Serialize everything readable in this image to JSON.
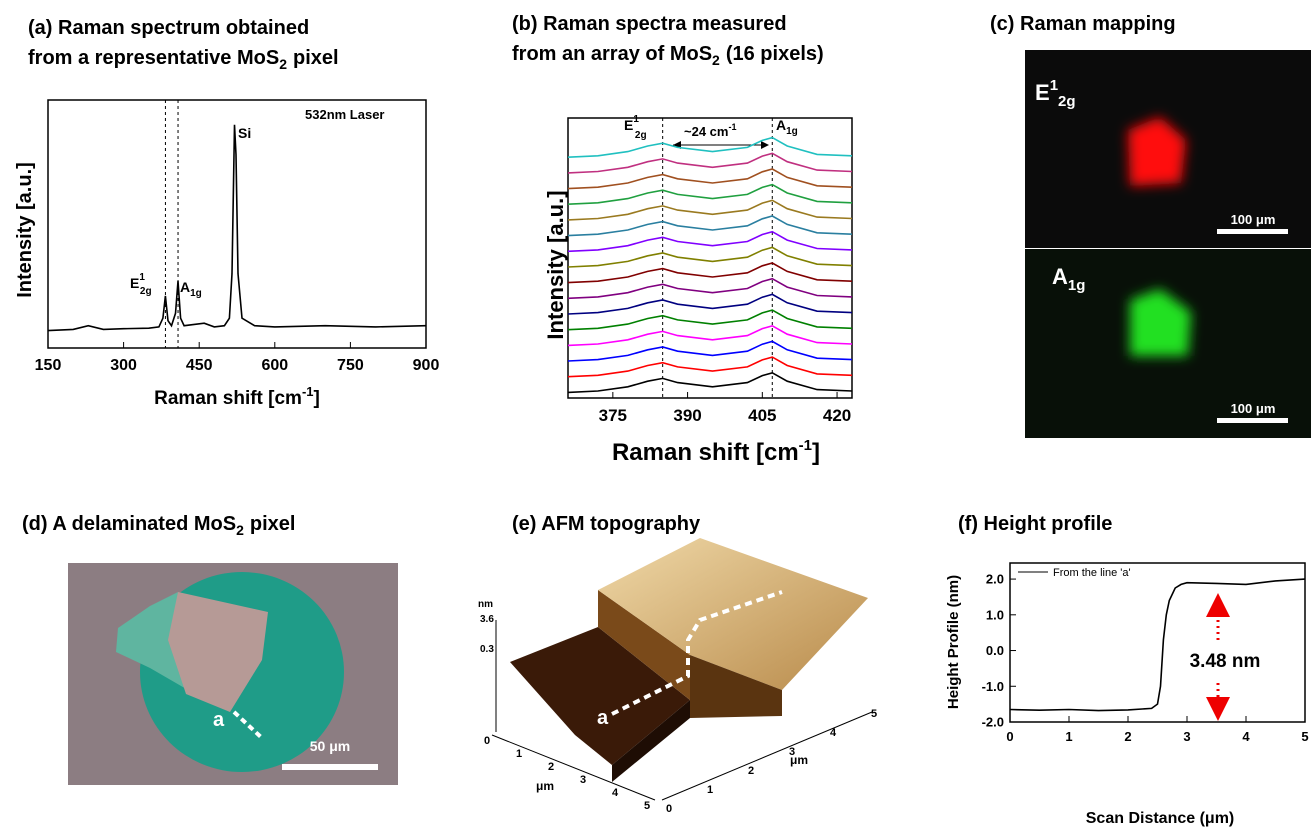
{
  "chart_data": [
    {
      "type": "line",
      "title": [
        "(a) Raman spectrum obtained",
        "from a representative MoS",
        "2",
        "pixel"
      ],
      "xlabel": [
        "Raman shift [cm",
        "-1",
        "]"
      ],
      "ylabel": "Intensity [a.u.]",
      "annotations": {
        "laser": "532nm Laser",
        "si": "Si",
        "e": [
          "E",
          "1",
          "2g"
        ],
        "a": [
          "A",
          "1g"
        ]
      },
      "x": [
        150,
        200,
        230,
        260,
        300,
        350,
        370,
        378,
        383,
        388,
        395,
        403,
        408,
        413,
        420,
        440,
        460,
        480,
        500,
        510,
        515,
        520,
        523,
        527,
        535,
        560,
        600,
        700,
        800,
        900
      ],
      "values": [
        0.07,
        0.075,
        0.09,
        0.075,
        0.078,
        0.08,
        0.085,
        0.12,
        0.21,
        0.11,
        0.09,
        0.14,
        0.27,
        0.12,
        0.09,
        0.095,
        0.1,
        0.085,
        0.09,
        0.12,
        0.3,
        0.9,
        0.78,
        0.3,
        0.12,
        0.09,
        0.085,
        0.09,
        0.085,
        0.09
      ],
      "color": "#000000",
      "vlines": [
        383,
        408
      ],
      "xlim": [
        150,
        900
      ],
      "xticks": [
        150,
        300,
        450,
        600,
        750,
        900
      ],
      "ylim": [
        0,
        1
      ]
    },
    {
      "type": "line",
      "title": [
        "(b) Raman spectra measured",
        "from an array of MoS",
        "2",
        "(16 pixels)"
      ],
      "xlabel": [
        "Raman shift [cm",
        "-1",
        "]"
      ],
      "ylabel": "Intensity [a.u.]",
      "annotations": {
        "e": [
          "E",
          "1",
          "2g"
        ],
        "shift": [
          "~24 cm",
          "-1"
        ],
        "a": [
          "A",
          "1g"
        ]
      },
      "x": [
        366,
        372,
        378,
        382,
        385,
        388,
        395,
        402,
        405,
        407,
        410,
        416,
        423
      ],
      "series": [
        {
          "color": "#000000",
          "values": [
            0.02,
            0.025,
            0.04,
            0.06,
            0.07,
            0.055,
            0.04,
            0.055,
            0.08,
            0.09,
            0.06,
            0.03,
            0.025
          ]
        },
        {
          "color": "#ff0000",
          "values": [
            0.076,
            0.081,
            0.096,
            0.116,
            0.126,
            0.111,
            0.096,
            0.111,
            0.136,
            0.146,
            0.116,
            0.086,
            0.081
          ]
        },
        {
          "color": "#0000ff",
          "values": [
            0.132,
            0.137,
            0.152,
            0.172,
            0.182,
            0.167,
            0.152,
            0.167,
            0.192,
            0.202,
            0.172,
            0.142,
            0.137
          ]
        },
        {
          "color": "#ff00ff",
          "values": [
            0.188,
            0.193,
            0.208,
            0.228,
            0.238,
            0.223,
            0.208,
            0.223,
            0.248,
            0.258,
            0.228,
            0.198,
            0.193
          ]
        },
        {
          "color": "#008000",
          "values": [
            0.244,
            0.249,
            0.264,
            0.284,
            0.294,
            0.279,
            0.264,
            0.279,
            0.304,
            0.314,
            0.284,
            0.254,
            0.249
          ]
        },
        {
          "color": "#000080",
          "values": [
            0.3,
            0.305,
            0.32,
            0.34,
            0.35,
            0.335,
            0.32,
            0.335,
            0.36,
            0.37,
            0.34,
            0.31,
            0.305
          ]
        },
        {
          "color": "#800080",
          "values": [
            0.356,
            0.361,
            0.376,
            0.396,
            0.406,
            0.391,
            0.376,
            0.391,
            0.416,
            0.426,
            0.396,
            0.366,
            0.361
          ]
        },
        {
          "color": "#800000",
          "values": [
            0.412,
            0.417,
            0.432,
            0.452,
            0.462,
            0.447,
            0.432,
            0.447,
            0.472,
            0.482,
            0.452,
            0.422,
            0.417
          ]
        },
        {
          "color": "#808000",
          "values": [
            0.468,
            0.473,
            0.488,
            0.508,
            0.518,
            0.503,
            0.488,
            0.503,
            0.528,
            0.538,
            0.508,
            0.478,
            0.473
          ]
        },
        {
          "color": "#8000ff",
          "values": [
            0.524,
            0.529,
            0.544,
            0.564,
            0.574,
            0.559,
            0.544,
            0.559,
            0.584,
            0.594,
            0.564,
            0.534,
            0.529
          ]
        },
        {
          "color": "#2a7fa0",
          "values": [
            0.58,
            0.585,
            0.6,
            0.62,
            0.63,
            0.615,
            0.6,
            0.615,
            0.64,
            0.65,
            0.62,
            0.59,
            0.585
          ]
        },
        {
          "color": "#9a7a20",
          "values": [
            0.636,
            0.641,
            0.656,
            0.676,
            0.686,
            0.671,
            0.656,
            0.671,
            0.696,
            0.706,
            0.676,
            0.646,
            0.641
          ]
        },
        {
          "color": "#20a040",
          "values": [
            0.692,
            0.697,
            0.712,
            0.732,
            0.742,
            0.727,
            0.712,
            0.727,
            0.752,
            0.762,
            0.732,
            0.702,
            0.697
          ]
        },
        {
          "color": "#a05020",
          "values": [
            0.748,
            0.753,
            0.768,
            0.788,
            0.798,
            0.783,
            0.768,
            0.783,
            0.808,
            0.818,
            0.788,
            0.758,
            0.753
          ]
        },
        {
          "color": "#c03080",
          "values": [
            0.804,
            0.809,
            0.824,
            0.844,
            0.854,
            0.839,
            0.824,
            0.839,
            0.864,
            0.874,
            0.844,
            0.814,
            0.809
          ]
        },
        {
          "color": "#20c0c0",
          "values": [
            0.86,
            0.865,
            0.88,
            0.9,
            0.91,
            0.895,
            0.88,
            0.895,
            0.92,
            0.93,
            0.9,
            0.87,
            0.865
          ]
        }
      ],
      "vlines": [
        385,
        407
      ],
      "xlim": [
        366,
        423
      ],
      "xticks": [
        375,
        390,
        405,
        420
      ],
      "ylim": [
        0,
        1
      ]
    },
    {
      "type": "image",
      "title": "(c) Raman mapping",
      "labels": {
        "e": [
          "E",
          "1",
          "2g"
        ],
        "a": [
          "A",
          "1g"
        ],
        "scale_top": "100 μm",
        "scale_bottom": "100 μm"
      }
    },
    {
      "type": "image",
      "title": [
        "(d) A delaminated MoS",
        "2",
        "pixel"
      ],
      "labels": {
        "line": "a",
        "scale": "50 μm"
      }
    },
    {
      "type": "surface",
      "title": "(e) AFM topography",
      "labels": {
        "z_unit": "nm",
        "x_unit": "μm",
        "y_unit": "μm",
        "line": "a"
      },
      "zticks": [
        3.6,
        0.3
      ],
      "xticks": [
        0,
        1,
        2,
        3,
        4,
        5
      ],
      "yticks": [
        0,
        1,
        2,
        3,
        4,
        5
      ]
    },
    {
      "type": "line",
      "title": "(f) Height profile",
      "xlabel": "Scan Distance (μm)",
      "ylabel": "Height Profile (nm)",
      "legend": "From the line 'a'",
      "annotation": "3.48 nm",
      "x": [
        0,
        0.5,
        1,
        1.5,
        2,
        2.4,
        2.5,
        2.55,
        2.6,
        2.65,
        2.7,
        2.8,
        2.9,
        3,
        3.5,
        4,
        4.5,
        5
      ],
      "values": [
        -1.65,
        -1.67,
        -1.65,
        -1.68,
        -1.66,
        -1.62,
        -1.5,
        -1.0,
        0.3,
        1.0,
        1.4,
        1.75,
        1.85,
        1.9,
        1.88,
        1.85,
        1.95,
        2.0
      ],
      "color": "#000000",
      "xlim": [
        0,
        5
      ],
      "xticks": [
        0,
        1,
        2,
        3,
        4,
        5
      ],
      "ylim": [
        -2,
        2.45
      ],
      "yticks": [
        {
          "value": -2,
          "label": "-2.0"
        },
        {
          "value": -1,
          "label": "-1.0"
        },
        {
          "value": 0,
          "label": "0.0"
        },
        {
          "value": 1,
          "label": "1.0"
        },
        {
          "value": 2,
          "label": "2.0"
        }
      ]
    }
  ]
}
